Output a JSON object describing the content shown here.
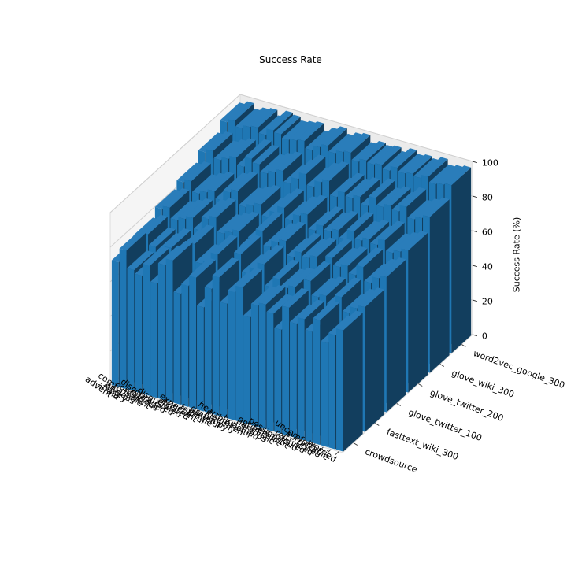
{
  "chart_data": {
    "type": "bar3d",
    "title": "Success Rate",
    "zlabel": "Success Rate (%)",
    "zlim": [
      0,
      100
    ],
    "zticks": [
      0,
      20,
      40,
      60,
      80,
      100
    ],
    "color": "#1f77b4",
    "side_color": "#123e5e",
    "top_color": "#2a7dba",
    "categories": [
      "advent",
      "afraid",
      "angry",
      "anxious",
      "comfortable",
      "confident",
      "curious",
      "discouraged",
      "disgusted",
      "elated",
      "excited",
      "expectant",
      "fearful",
      "gentle",
      "grateful",
      "happy",
      "healthy",
      "heartbroken",
      "hopeful",
      "mad",
      "nervous",
      "optimistic",
      "pensive",
      "pessimistic",
      "proud",
      "relieved",
      "sad",
      "surprised",
      "uncomfortable",
      "worried"
    ],
    "series": [
      {
        "name": "crowdsource",
        "values": [
          72,
          80,
          70,
          68,
          75,
          66,
          78,
          82,
          64,
          70,
          76,
          60,
          72,
          80,
          66,
          74,
          78,
          62,
          70,
          72,
          68,
          60,
          74,
          66,
          70,
          64,
          72,
          60,
          66,
          70
        ]
      },
      {
        "name": "fasttext_wiki_300",
        "values": [
          75,
          78,
          72,
          70,
          74,
          70,
          76,
          80,
          70,
          72,
          78,
          66,
          70,
          82,
          72,
          76,
          80,
          68,
          74,
          70,
          72,
          66,
          78,
          70,
          72,
          68,
          74,
          66,
          70,
          72
        ]
      },
      {
        "name": "glove_twitter_100",
        "values": [
          80,
          82,
          76,
          78,
          80,
          74,
          82,
          84,
          76,
          78,
          80,
          72,
          78,
          84,
          76,
          80,
          82,
          74,
          78,
          76,
          78,
          72,
          80,
          76,
          78,
          74,
          80,
          72,
          76,
          78
        ]
      },
      {
        "name": "glove_twitter_200",
        "values": [
          84,
          86,
          80,
          82,
          84,
          80,
          86,
          88,
          80,
          82,
          84,
          78,
          82,
          86,
          80,
          84,
          86,
          78,
          82,
          80,
          82,
          78,
          84,
          80,
          82,
          80,
          84,
          78,
          80,
          82
        ]
      },
      {
        "name": "glove_wiki_300",
        "values": [
          90,
          92,
          88,
          90,
          92,
          88,
          94,
          92,
          88,
          90,
          92,
          86,
          90,
          94,
          88,
          92,
          94,
          86,
          90,
          88,
          90,
          86,
          92,
          88,
          90,
          88,
          92,
          86,
          88,
          90
        ]
      },
      {
        "name": "word2vec_google_300",
        "values": [
          96,
          98,
          95,
          97,
          98,
          95,
          99,
          98,
          96,
          97,
          98,
          94,
          97,
          99,
          96,
          98,
          99,
          95,
          97,
          96,
          97,
          95,
          98,
          96,
          97,
          96,
          98,
          95,
          96,
          97
        ]
      }
    ]
  }
}
